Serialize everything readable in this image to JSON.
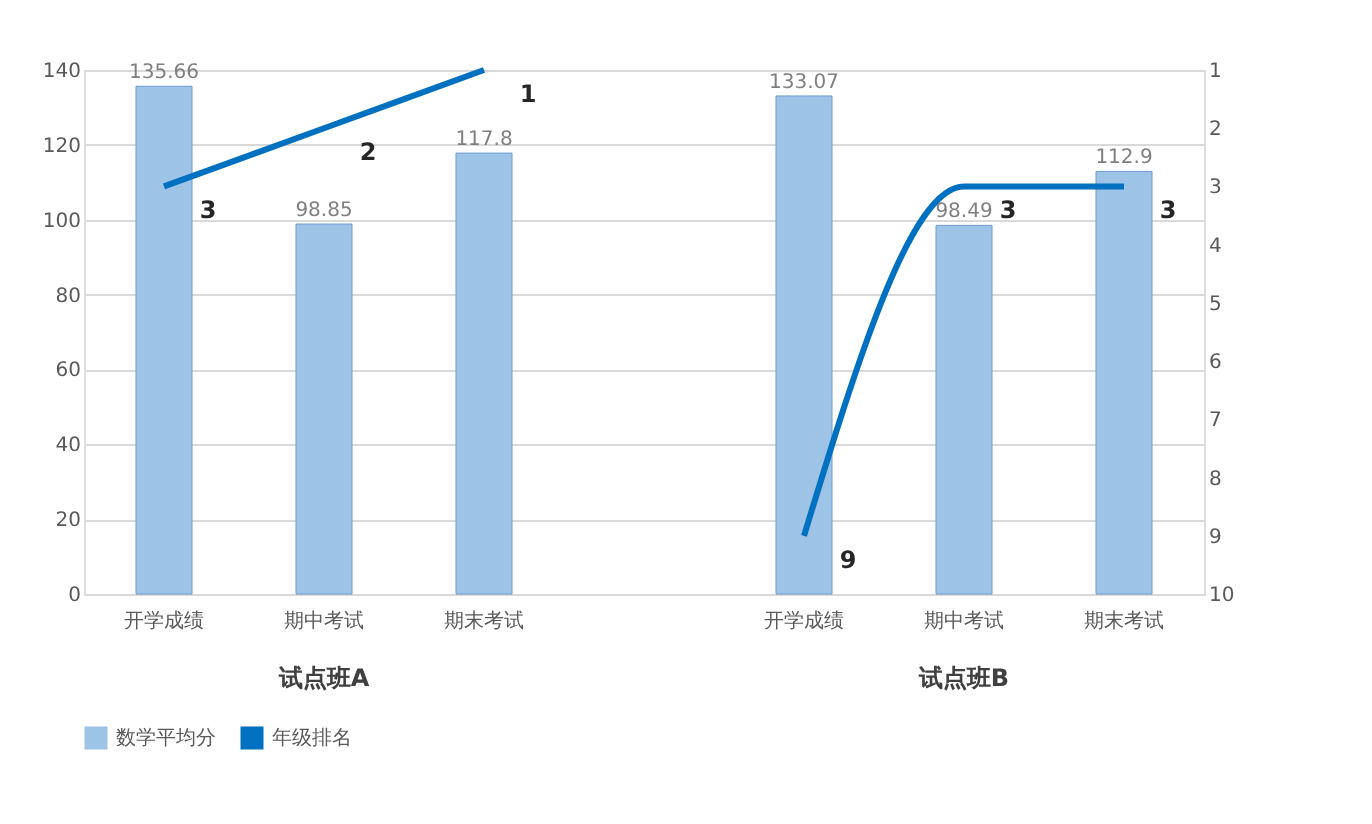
{
  "chart_data": {
    "type": "bar",
    "categories": [
      "开学成绩",
      "期中考试",
      "期末考试",
      null,
      "开学成绩",
      "期中考试",
      "期末考试"
    ],
    "series": [
      {
        "name": "数学平均分",
        "type": "bar",
        "color": "#9dc3e6",
        "values": [
          135.66,
          98.85,
          117.8,
          null,
          133.07,
          98.49,
          112.9
        ]
      },
      {
        "name": "年级排名",
        "type": "line",
        "axis": "y2",
        "color": "#0070c0",
        "values": [
          3,
          2,
          1,
          null,
          9,
          3,
          3
        ]
      }
    ],
    "annotations": [
      "试点班A",
      "试点班B"
    ],
    "ylim": [
      0,
      140
    ],
    "yticks": [
      0,
      20,
      40,
      60,
      80,
      100,
      120,
      140
    ],
    "y2lim": [
      10,
      1
    ],
    "y2ticks": [
      1,
      2,
      3,
      4,
      5,
      6,
      7,
      8,
      9,
      10
    ],
    "data_labels": true,
    "grid": "y",
    "legend": "bottom"
  }
}
